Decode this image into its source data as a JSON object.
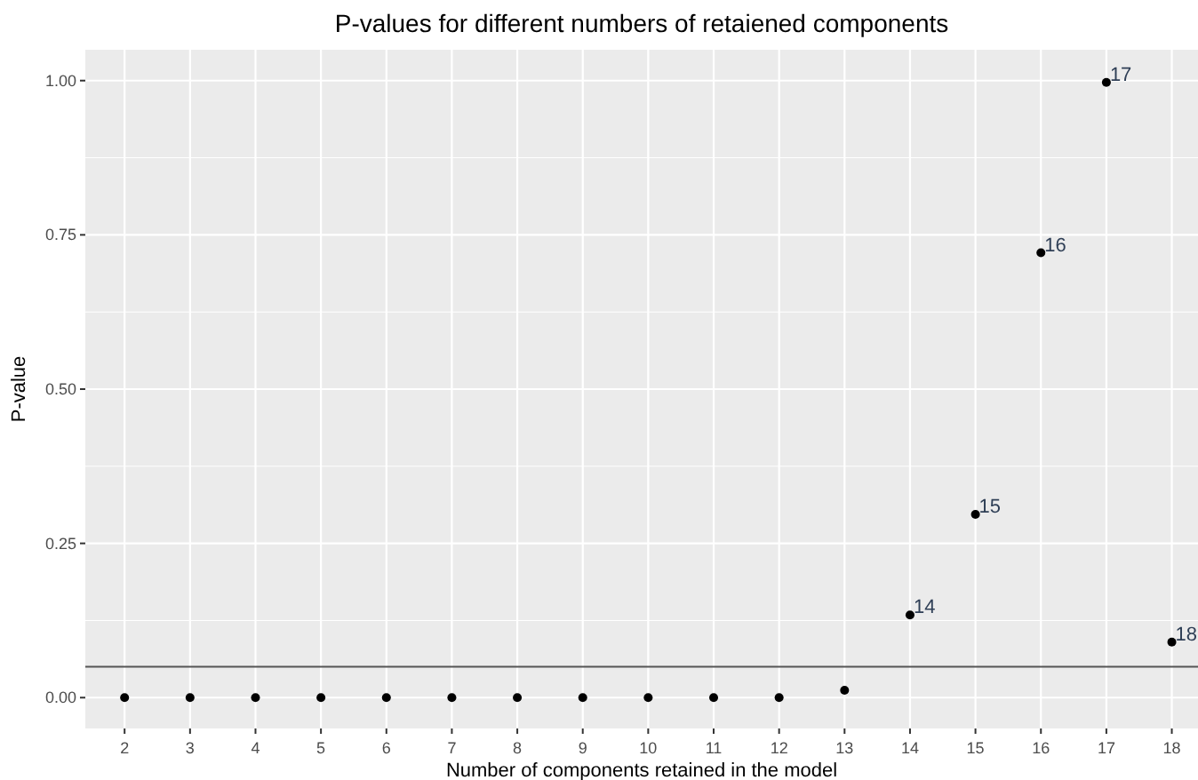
{
  "chart_data": {
    "type": "scatter",
    "title": "P-values for different numbers of retaiened components",
    "xlabel": "Number of components retained in the model",
    "ylabel": "P-value",
    "x": [
      2,
      3,
      4,
      5,
      6,
      7,
      8,
      9,
      10,
      11,
      12,
      13,
      14,
      15,
      16,
      17,
      18
    ],
    "values": [
      0,
      0,
      0,
      0,
      0,
      0,
      0,
      0,
      0,
      0,
      0,
      0.012,
      0.134,
      0.297,
      0.721,
      0.997,
      0.09
    ],
    "color": "#000000",
    "marker": "circle",
    "xlim": [
      1.4,
      18.4
    ],
    "xticks": [
      2,
      3,
      4,
      5,
      6,
      7,
      8,
      9,
      10,
      11,
      12,
      13,
      14,
      15,
      16,
      17,
      18
    ],
    "ylim": [
      -0.05,
      1.05
    ],
    "yticks": [
      {
        "value": 0,
        "label": "0.00"
      },
      {
        "value": 0.25,
        "label": "0.25"
      },
      {
        "value": 0.5,
        "label": "0.50"
      },
      {
        "value": 0.75,
        "label": "0.75"
      },
      {
        "value": 1,
        "label": "1.00"
      }
    ],
    "grid": true,
    "ref_lines": [
      {
        "axis": "y",
        "value": 0.05,
        "color": "#555555"
      }
    ],
    "annotations": [
      {
        "text": "14",
        "x": 14,
        "y": 0.134
      },
      {
        "text": "15",
        "x": 15,
        "y": 0.297
      },
      {
        "text": "16",
        "x": 16,
        "y": 0.721
      },
      {
        "text": "17",
        "x": 17,
        "y": 0.997
      },
      {
        "text": "18",
        "x": 18,
        "y": 0.09
      }
    ]
  }
}
